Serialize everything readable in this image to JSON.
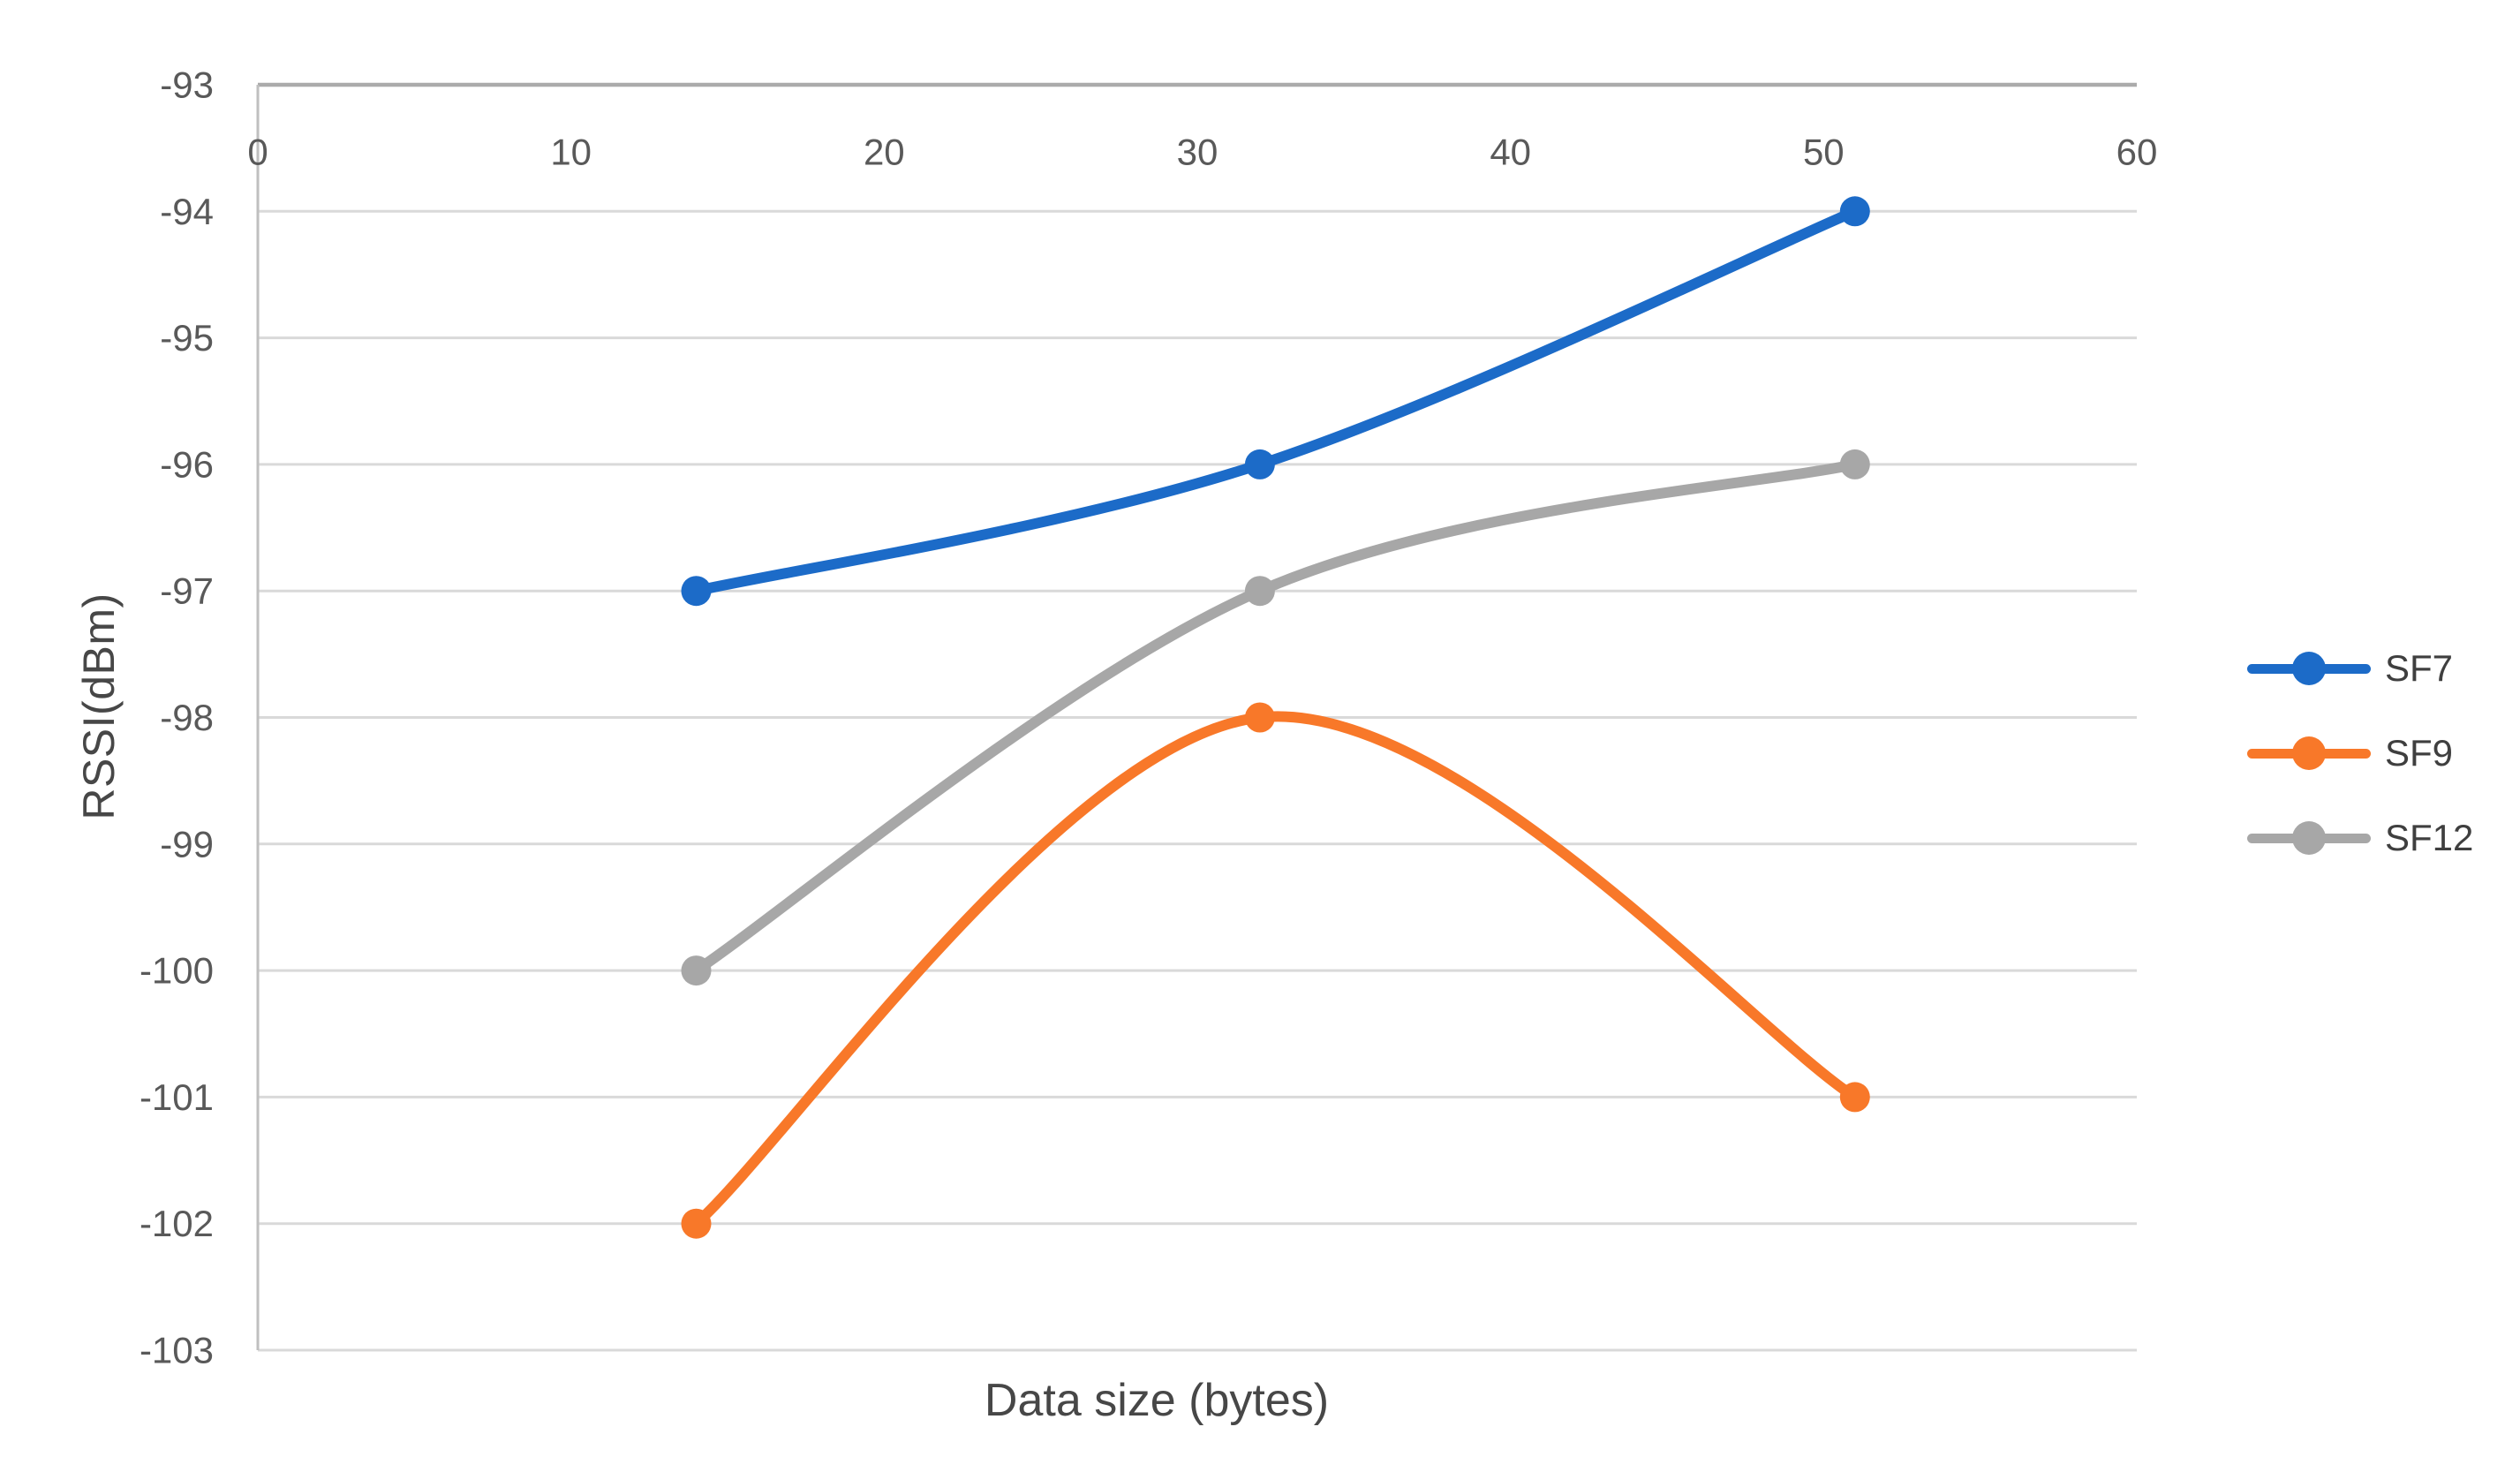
{
  "figure": {
    "background": "#ffffff"
  },
  "chart_data": {
    "type": "line",
    "title": "",
    "xlabel": "Data size (bytes)",
    "ylabel": "RSSI(dBm)",
    "x": [
      14,
      32,
      51
    ],
    "series": [
      {
        "name": "SF7",
        "color": "#1c6bc8",
        "values": [
          -97,
          -96,
          -94
        ]
      },
      {
        "name": "SF9",
        "color": "#f87829",
        "values": [
          -102,
          -98,
          -101
        ]
      },
      {
        "name": "SF12",
        "color": "#a7a7a7",
        "values": [
          -100,
          -97,
          -96
        ]
      }
    ],
    "xlim": [
      0,
      60
    ],
    "ylim": [
      -103,
      -93
    ],
    "x_ticks": [
      0,
      10,
      20,
      30,
      40,
      50,
      60
    ],
    "y_ticks": [
      -93,
      -94,
      -95,
      -96,
      -97,
      -98,
      -99,
      -100,
      -101,
      -102,
      -103
    ],
    "smooth": true,
    "grid": "horizontal",
    "legend_position": "right",
    "colors": {
      "gridline": "#d9d9d9",
      "axis_line": "#bfbfbf",
      "top_axis_line": "#ababab",
      "tick_label": "#595959",
      "axis_title": "#474747",
      "legend_text": "#3f3f3f"
    }
  }
}
